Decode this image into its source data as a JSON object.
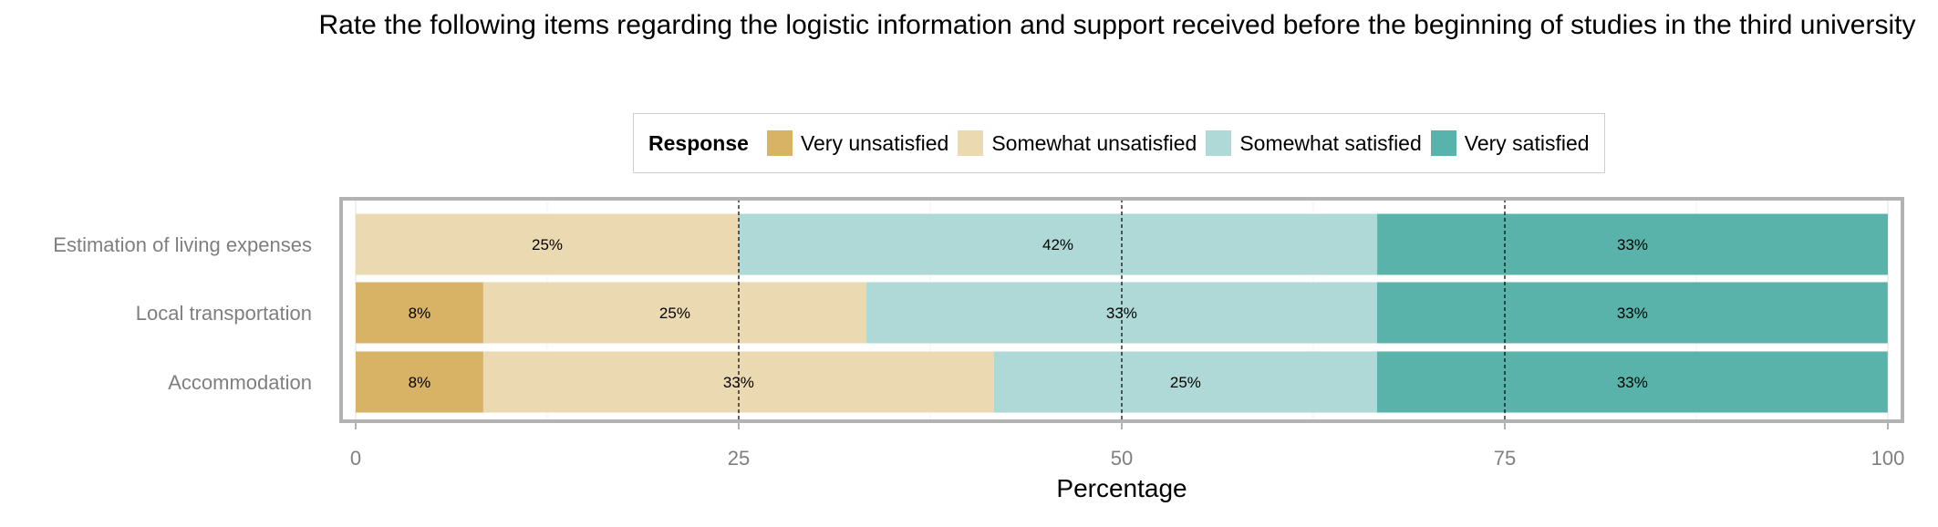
{
  "chart_data": {
    "type": "bar",
    "orientation": "horizontal",
    "stacked": true,
    "title": "Rate the following items regarding the logistic information and support received before the beginning of studies in the third university",
    "xlabel": "Percentage",
    "ylabel": "",
    "xlim": [
      0,
      100
    ],
    "xticks": [
      0,
      25,
      50,
      75,
      100
    ],
    "grid": true,
    "legend": {
      "title": "Response",
      "position": "top"
    },
    "categories": [
      "Estimation of living expenses",
      "Local transportation",
      "Accommodation"
    ],
    "series": [
      {
        "name": "Very unsatisfied",
        "color": "#d9b365",
        "values": [
          0,
          8.33,
          8.33
        ],
        "labels": [
          "",
          "8%",
          "8%"
        ]
      },
      {
        "name": "Somewhat unsatisfied",
        "color": "#ebd9b2",
        "values": [
          25,
          25,
          33.33
        ],
        "labels": [
          "25%",
          "25%",
          "33%"
        ]
      },
      {
        "name": "Somewhat satisfied",
        "color": "#aed9d6",
        "values": [
          41.67,
          33.33,
          25
        ],
        "labels": [
          "42%",
          "33%",
          "25%"
        ]
      },
      {
        "name": "Very satisfied",
        "color": "#5ab3aa",
        "values": [
          33.33,
          33.33,
          33.33
        ],
        "labels": [
          "33%",
          "33%",
          "33%"
        ]
      }
    ],
    "reference_lines": [
      25,
      50,
      75
    ]
  }
}
